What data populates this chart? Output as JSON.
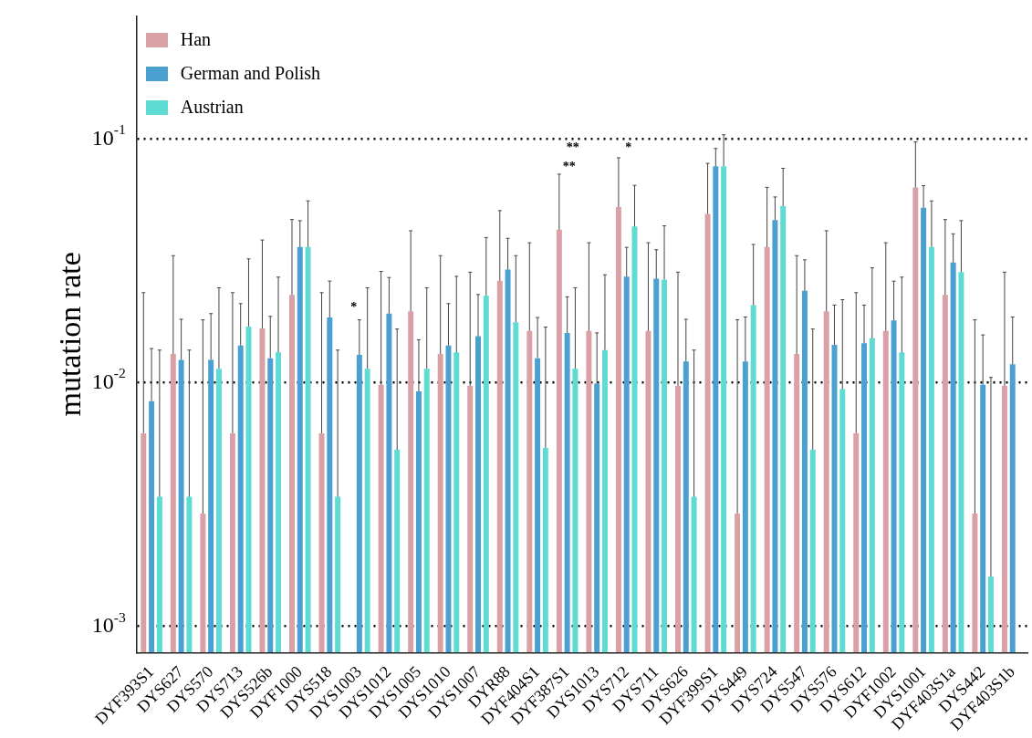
{
  "chart_data": {
    "type": "bar",
    "ylabel": "mutation rate",
    "log": "y",
    "ylim": [
      0.00078,
      0.32
    ],
    "yticks": [
      {
        "value": 0.001,
        "label": "10$^{-3}$"
      },
      {
        "value": 0.01,
        "label": "10$^{-2}$"
      },
      {
        "value": 0.1,
        "label": "10$^{-1}$"
      }
    ],
    "grid": "y",
    "legend": "top left",
    "categories": [
      "DYF393S1",
      "DYS627",
      "DYS570",
      "DYS713",
      "DYS526b",
      "DYF1000",
      "DYS518",
      "DYS1003",
      "DYS1012",
      "DYS1005",
      "DYS1010",
      "DYS1007",
      "DYR88",
      "DYF404S1",
      "DYF387S1",
      "DYS1013",
      "DYS712",
      "DYS711",
      "DYS626",
      "DYF399S1",
      "DYS449",
      "DYS724",
      "DYS547",
      "DYS576",
      "DYS612",
      "DYF1002",
      "DYS1001",
      "DYF403S1a",
      "DYS442",
      "DYF403S1b"
    ],
    "series": [
      {
        "name": "Han",
        "color": "#d9a0a6",
        "values": [
          0.0062,
          0.0131,
          0.0029,
          0.0062,
          0.0167,
          0.0229,
          0.0062,
          null,
          0.0098,
          0.0196,
          0.0131,
          0.0097,
          0.0262,
          0.0163,
          0.0424,
          0.0163,
          0.0525,
          0.0163,
          0.0097,
          0.0492,
          0.0029,
          0.036,
          0.0131,
          0.0196,
          0.0062,
          0.0163,
          0.0633,
          0.0229,
          0.0029,
          0.0097
        ],
        "errors": [
          [
            0.0062,
            0.0234
          ],
          [
            0.0131,
            0.0332
          ],
          [
            0.0029,
            0.0181
          ],
          [
            0.0062,
            0.0234
          ],
          [
            0.0167,
            0.0385
          ],
          [
            0.0229,
            0.0467
          ],
          [
            0.0062,
            0.0234
          ],
          null,
          [
            0.0098,
            0.0286
          ],
          [
            0.0196,
            0.042
          ],
          [
            0.0131,
            0.0332
          ],
          [
            0.0097,
            0.0284
          ],
          [
            0.0262,
            0.0508
          ],
          [
            0.0163,
            0.0375
          ],
          [
            0.0424,
            0.0717
          ],
          [
            0.0163,
            0.0375
          ],
          [
            0.0525,
            0.0837
          ],
          [
            0.0163,
            0.0375
          ],
          [
            0.0097,
            0.0284
          ],
          [
            0.0492,
            0.0794
          ],
          [
            0.0029,
            0.0181
          ],
          [
            0.036,
            0.0633
          ],
          [
            0.0131,
            0.0332
          ],
          [
            0.0196,
            0.042
          ],
          [
            0.0062,
            0.0234
          ],
          [
            0.0163,
            0.0375
          ],
          [
            0.0633,
            0.0972
          ],
          [
            0.0229,
            0.0467
          ],
          [
            0.0029,
            0.0181
          ],
          [
            0.0097,
            0.0284
          ]
        ]
      },
      {
        "name": "German and Polish",
        "color": "#4aa0d0",
        "values": [
          0.0084,
          0.0124,
          0.0124,
          0.0142,
          0.0126,
          0.036,
          0.0185,
          0.013,
          0.0192,
          0.0092,
          0.0142,
          0.0155,
          0.0291,
          0.0126,
          0.016,
          0.0099,
          0.0272,
          0.0267,
          0.0122,
          0.0773,
          0.0122,
          0.0465,
          0.0238,
          0.0143,
          0.0145,
          0.018,
          0.0522,
          0.0311,
          0.0098,
          0.0119
        ],
        "errors": [
          [
            0.0084,
            0.0138
          ],
          [
            0.0124,
            0.0182
          ],
          [
            0.0124,
            0.0192
          ],
          [
            0.0142,
            0.0211
          ],
          [
            0.0126,
            0.0187
          ],
          [
            0.036,
            0.0462
          ],
          [
            0.0185,
            0.0261
          ],
          [
            0.013,
            0.0181
          ],
          [
            0.0192,
            0.027
          ],
          [
            0.0092,
            0.015
          ],
          [
            0.0142,
            0.0211
          ],
          [
            0.0155,
            0.023
          ],
          [
            0.0291,
            0.0391
          ],
          [
            0.0126,
            0.0185
          ],
          [
            0.016,
            0.0225
          ],
          [
            0.0099,
            0.016
          ],
          [
            0.0272,
            0.0359
          ],
          [
            0.0267,
            0.0351
          ],
          [
            0.0122,
            0.0182
          ],
          [
            0.0773,
            0.0914
          ],
          [
            0.0122,
            0.0186
          ],
          [
            0.0465,
            0.0578
          ],
          [
            0.0238,
            0.0319
          ],
          [
            0.0143,
            0.0208
          ],
          [
            0.0145,
            0.0208
          ],
          [
            0.018,
            0.0261
          ],
          [
            0.0522,
            0.0643
          ],
          [
            0.0311,
            0.0408
          ],
          [
            0.0098,
            0.0157
          ],
          [
            0.0119,
            0.0186
          ]
        ]
      },
      {
        "name": "Austrian",
        "color": "#5edcd4",
        "values": [
          0.0034,
          0.0034,
          0.0114,
          0.017,
          0.0133,
          0.036,
          0.0034,
          0.0114,
          0.0053,
          0.0114,
          0.0133,
          0.0227,
          0.0177,
          0.0054,
          0.0114,
          0.0136,
          0.0437,
          0.0265,
          0.0034,
          0.0773,
          0.0208,
          0.053,
          0.0053,
          0.0094,
          0.0152,
          0.0133,
          0.036,
          0.0284,
          0.0016,
          null
        ],
        "errors": [
          [
            0.0034,
            0.0136
          ],
          [
            0.0034,
            0.0136
          ],
          [
            0.0114,
            0.0245
          ],
          [
            0.017,
            0.0322
          ],
          [
            0.0133,
            0.0271
          ],
          [
            0.036,
            0.0557
          ],
          [
            0.0034,
            0.0136
          ],
          [
            0.0114,
            0.0245
          ],
          [
            0.0053,
            0.0166
          ],
          [
            0.0114,
            0.0245
          ],
          [
            0.0133,
            0.0273
          ],
          [
            0.0227,
            0.0394
          ],
          [
            0.0177,
            0.0332
          ],
          [
            0.0054,
            0.0169
          ],
          [
            0.0114,
            0.0245
          ],
          [
            0.0136,
            0.0277
          ],
          [
            0.0437,
            0.0645
          ],
          [
            0.0265,
            0.044
          ],
          [
            0.0034,
            0.0136
          ],
          [
            0.0773,
            0.104
          ],
          [
            0.0208,
            0.0369
          ],
          [
            0.053,
            0.0758
          ],
          [
            0.0053,
            0.0166
          ],
          [
            0.0094,
            0.0219
          ],
          [
            0.0152,
            0.0296
          ],
          [
            0.0133,
            0.0271
          ],
          [
            0.036,
            0.0557
          ],
          [
            0.0284,
            0.0462
          ],
          [
            0.0016,
            0.0105
          ],
          null
        ]
      }
    ],
    "annotations": [
      "*",
      "**",
      "**",
      "*"
    ]
  }
}
